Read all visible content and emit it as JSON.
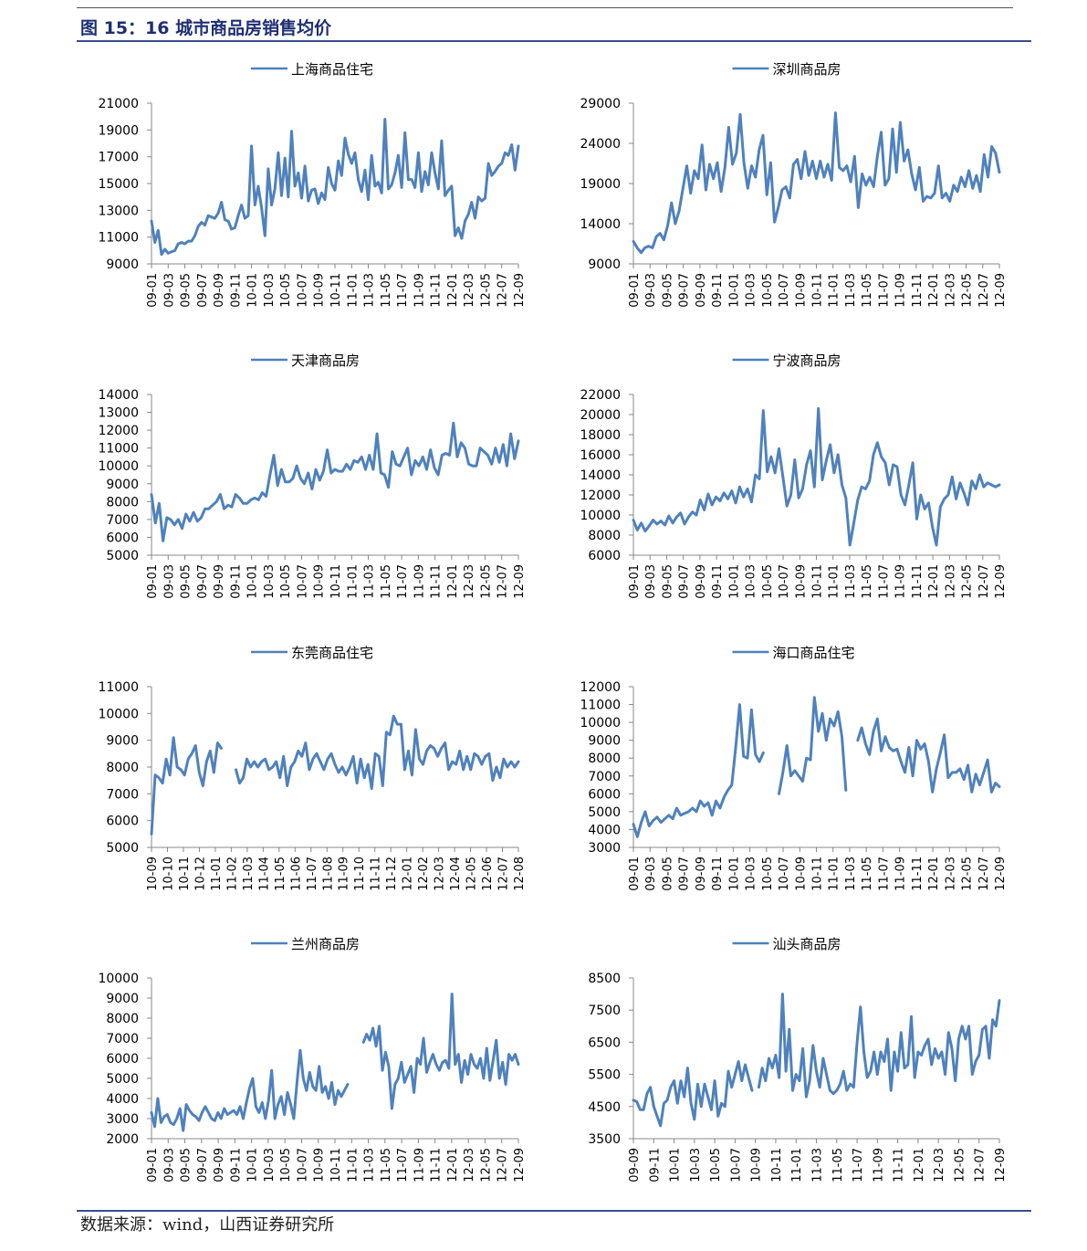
{
  "figure_title": "图 15：16 城市商品房销售均价",
  "source": "数据来源：wind，山西证券研究所",
  "colors": {
    "line": "#4f81bd",
    "title": "#1f2f73",
    "rule": "#3c4d8e"
  },
  "chart_data": [
    {
      "type": "line",
      "series_name": "上海商品住宅",
      "ylim": [
        9000,
        21000
      ],
      "yticks": [
        9000,
        11000,
        13000,
        15000,
        17000,
        19000,
        21000
      ],
      "xticks": [
        "09-01",
        "09-03",
        "09-05",
        "09-07",
        "09-09",
        "09-11",
        "10-01",
        "10-03",
        "10-05",
        "10-07",
        "10-09",
        "10-11",
        "11-01",
        "11-03",
        "11-05",
        "11-07",
        "11-09",
        "11-11",
        "12-01",
        "12-03",
        "12-05",
        "12-07",
        "12-09"
      ],
      "y": [
        12200,
        10600,
        11500,
        9700,
        10100,
        9800,
        9900,
        10000,
        10500,
        10600,
        10500,
        10700,
        10700,
        11100,
        11800,
        12100,
        11900,
        12600,
        12500,
        12400,
        12800,
        13600,
        12300,
        12200,
        11600,
        11700,
        12600,
        13400,
        12400,
        12600,
        17800,
        13400,
        14800,
        13200,
        11100,
        16100,
        13400,
        14600,
        17300,
        14100,
        16900,
        14000,
        18900,
        14800,
        15800,
        13900,
        16300,
        13700,
        14500,
        14600,
        13500,
        14300,
        13800,
        16200,
        15000,
        14500,
        16700,
        15600,
        18400,
        17200,
        16500,
        17300,
        15300,
        14400,
        16000,
        13800,
        17100,
        14800,
        15100,
        14300,
        19800,
        14600,
        14900,
        15800,
        17100,
        14700,
        18800,
        15300,
        15300,
        14700,
        17300,
        14400,
        15900,
        14900,
        17300,
        15800,
        14600,
        18200,
        14100,
        14500,
        14800,
        11100,
        11700,
        10900,
        12200,
        12700,
        13600,
        12400,
        14000,
        13700,
        13900,
        16500,
        15600,
        15900,
        16300,
        16500,
        17300,
        17100,
        17900,
        16000,
        17800
      ]
    },
    {
      "type": "line",
      "series_name": "深圳商品房",
      "ylim": [
        9000,
        29000
      ],
      "yticks": [
        9000,
        14000,
        19000,
        24000,
        29000
      ],
      "xticks": [
        "09-01",
        "09-03",
        "09-05",
        "09-07",
        "09-09",
        "09-11",
        "10-01",
        "10-03",
        "10-05",
        "10-07",
        "10-09",
        "10-11",
        "11-01",
        "11-03",
        "11-05",
        "11-07",
        "11-09",
        "11-11",
        "12-01",
        "12-03",
        "12-05",
        "12-07",
        "12-09"
      ],
      "y": [
        11800,
        11000,
        10400,
        11000,
        11200,
        11000,
        12400,
        12800,
        12000,
        13800,
        16600,
        14000,
        15600,
        18400,
        21200,
        17800,
        20600,
        19600,
        23800,
        18200,
        21400,
        19600,
        21600,
        18000,
        21000,
        26000,
        21400,
        22800,
        27600,
        21600,
        18400,
        21200,
        19800,
        23200,
        25000,
        17600,
        21600,
        14200,
        16000,
        18200,
        18600,
        17200,
        21400,
        22000,
        19600,
        23000,
        20000,
        21800,
        19600,
        21800,
        19800,
        21400,
        19400,
        27800,
        21000,
        20600,
        21200,
        19200,
        22400,
        16000,
        20200,
        18800,
        19800,
        18600,
        22400,
        25400,
        18800,
        19600,
        25800,
        20400,
        26600,
        21800,
        23200,
        20200,
        18200,
        21000,
        16800,
        17400,
        17200,
        17800,
        21200,
        17200,
        17800,
        16800,
        18800,
        18000,
        19800,
        18600,
        20600,
        18400,
        20000,
        18000,
        22600,
        19800,
        23600,
        22800,
        20400
      ]
    },
    {
      "type": "line",
      "series_name": "天津商品房",
      "ylim": [
        5000,
        14000
      ],
      "yticks": [
        5000,
        6000,
        7000,
        8000,
        9000,
        10000,
        11000,
        12000,
        13000,
        14000
      ],
      "xticks": [
        "09-01",
        "09-03",
        "09-05",
        "09-07",
        "09-09",
        "09-11",
        "10-01",
        "10-03",
        "10-05",
        "10-07",
        "10-09",
        "10-11",
        "11-01",
        "11-03",
        "11-05",
        "11-07",
        "11-09",
        "11-11",
        "12-01",
        "12-03",
        "12-05",
        "12-07",
        "12-09"
      ],
      "y": [
        8400,
        6800,
        7900,
        5800,
        7100,
        7000,
        6700,
        7000,
        6500,
        7300,
        6900,
        7400,
        6900,
        7100,
        7600,
        7600,
        7800,
        8000,
        8400,
        7600,
        7800,
        7700,
        8400,
        8200,
        7900,
        7900,
        8100,
        8200,
        8100,
        8500,
        8300,
        9500,
        10600,
        8900,
        9800,
        9100,
        9100,
        9300,
        10000,
        9300,
        9000,
        9600,
        8700,
        9800,
        9200,
        9700,
        10900,
        9600,
        9800,
        9700,
        9700,
        10100,
        9800,
        10300,
        10200,
        10500,
        9800,
        10600,
        9800,
        11800,
        9600,
        9500,
        8800,
        10800,
        10100,
        10000,
        10500,
        11000,
        9500,
        10300,
        10000,
        10500,
        9800,
        10900,
        9900,
        9500,
        10600,
        10700,
        10600,
        12400,
        10500,
        11300,
        11000,
        10100,
        10000,
        10000,
        11000,
        10800,
        10600,
        10100,
        11000,
        10200,
        11200,
        10000,
        11800,
        10400,
        11400
      ]
    },
    {
      "type": "line",
      "series_name": "宁波商品房",
      "ylim": [
        6000,
        22000
      ],
      "yticks": [
        6000,
        8000,
        10000,
        12000,
        14000,
        16000,
        18000,
        20000,
        22000
      ],
      "xticks": [
        "09-01",
        "09-03",
        "09-05",
        "09-07",
        "09-09",
        "09-11",
        "10-01",
        "10-03",
        "10-05",
        "10-07",
        "10-09",
        "10-11",
        "11-01",
        "11-03",
        "11-05",
        "11-07",
        "11-09",
        "11-11",
        "12-01",
        "12-03",
        "12-05",
        "12-07",
        "12-09"
      ],
      "y": [
        9500,
        8500,
        9200,
        8400,
        8900,
        9500,
        9100,
        9400,
        9000,
        9900,
        9200,
        9800,
        10200,
        9100,
        9800,
        10300,
        10000,
        11500,
        10500,
        12100,
        11000,
        11800,
        11400,
        12200,
        11600,
        12400,
        11200,
        12800,
        11800,
        12600,
        11300,
        14000,
        13600,
        20400,
        14300,
        15800,
        14200,
        16600,
        13800,
        10900,
        12000,
        15500,
        11700,
        12600,
        15000,
        16400,
        12800,
        20600,
        13500,
        15400,
        17000,
        14200,
        16000,
        13000,
        11700,
        7000,
        9200,
        11500,
        12800,
        12600,
        13400,
        16000,
        17200,
        15800,
        15200,
        13000,
        15000,
        14800,
        12000,
        11000,
        13000,
        15200,
        9600,
        12000,
        10600,
        11200,
        8800,
        7000,
        10800,
        11600,
        12000,
        13800,
        11600,
        13200,
        12200,
        11000,
        13400,
        12600,
        14000,
        12800,
        13200,
        13000,
        12800,
        13000
      ]
    },
    {
      "type": "line",
      "series_name": "东莞商品住宅",
      "ylim": [
        5000,
        11000
      ],
      "yticks": [
        5000,
        6000,
        7000,
        8000,
        9000,
        10000,
        11000
      ],
      "xticks": [
        "10-09",
        "10-10",
        "10-11",
        "10-12",
        "11-01",
        "11-02",
        "11-03",
        "11-04",
        "11-05",
        "11-06",
        "11-07",
        "11-08",
        "11-09",
        "11-10",
        "11-11",
        "11-12",
        "12-01",
        "12-02",
        "12-03",
        "12-04",
        "12-05",
        "12-06",
        "12-07",
        "12-08"
      ],
      "segments": [
        {
          "start": 0,
          "y": [
            5500,
            7700,
            7600,
            7400,
            8300,
            7700,
            9100,
            8000,
            7900,
            7700,
            8300,
            8500,
            8800,
            7800,
            7300,
            8200,
            8600,
            7800,
            8900,
            8700
          ]
        },
        {
          "start": 23,
          "y": [
            7900,
            7400,
            7600,
            8300,
            8000,
            8200,
            8000,
            8200,
            8300,
            7900,
            8000,
            8200,
            7600,
            8400,
            7300,
            8000,
            8200,
            8600,
            8400,
            8900,
            7900,
            8300,
            8500,
            8200,
            7900,
            8300,
            8500,
            8100,
            7800,
            8000,
            7700,
            8000,
            8400,
            7400,
            8300,
            7600,
            8100,
            7200,
            8500,
            8400,
            7300,
            9300,
            9200,
            9900,
            9600,
            9600,
            7900,
            8600,
            7700,
            9400,
            8300,
            8100,
            8600,
            8800,
            8700,
            8400,
            8700,
            8900,
            7900,
            8200,
            8100,
            8600,
            7900,
            8400,
            7900,
            8500,
            8400,
            8100,
            8400,
            8500,
            7500,
            8000,
            7600,
            8300,
            8000,
            8200,
            8000,
            8200
          ]
        }
      ]
    },
    {
      "type": "line",
      "series_name": "海口商品住宅",
      "ylim": [
        3000,
        12000
      ],
      "yticks": [
        3000,
        4000,
        5000,
        6000,
        7000,
        8000,
        9000,
        10000,
        11000,
        12000
      ],
      "xticks": [
        "09-01",
        "09-03",
        "09-05",
        "09-07",
        "09-09",
        "09-11",
        "10-01",
        "10-03",
        "10-05",
        "10-07",
        "10-09",
        "10-11",
        "11-01",
        "11-03",
        "11-05",
        "11-07",
        "11-09",
        "11-11",
        "12-01",
        "12-03",
        "12-05",
        "12-07",
        "12-09"
      ],
      "segments": [
        {
          "start": 0,
          "y": [
            4300,
            3600,
            4400,
            5000,
            4200,
            4500,
            4700,
            4400,
            4600,
            4800,
            4600,
            5200,
            4800,
            4900,
            5000,
            5200,
            5000,
            5600,
            5300,
            5500,
            4800,
            5600,
            5200,
            5800,
            6200,
            6500,
            8600,
            11000,
            8100,
            8000,
            10700,
            8200,
            7800,
            8300
          ]
        },
        {
          "start": 37,
          "y": [
            6000,
            7200,
            8700,
            7000,
            7300,
            7000,
            6700,
            8000,
            7900,
            11400,
            9500,
            10500,
            9000,
            10200,
            9800,
            10600,
            9200,
            6200
          ]
        },
        {
          "start": 57,
          "y": [
            9000,
            9700,
            8800,
            8200,
            9500,
            10200,
            8400,
            9200,
            8600,
            8400,
            8500,
            7800,
            7200,
            8600,
            7000,
            9000,
            8500,
            8800,
            7800,
            6100,
            7400,
            8300,
            9300,
            6900,
            7200,
            7200,
            7400,
            6800,
            7600,
            6100,
            7100,
            6500,
            7200,
            7900,
            6100,
            6600,
            6400
          ]
        }
      ]
    },
    {
      "type": "line",
      "series_name": "兰州商品房",
      "ylim": [
        2000,
        10000
      ],
      "yticks": [
        2000,
        3000,
        4000,
        5000,
        6000,
        7000,
        8000,
        9000,
        10000
      ],
      "xticks": [
        "09-01",
        "09-03",
        "09-05",
        "09-07",
        "09-09",
        "09-11",
        "10-01",
        "10-03",
        "10-05",
        "10-07",
        "10-09",
        "10-11",
        "11-01",
        "11-03",
        "11-05",
        "11-07",
        "11-09",
        "11-11",
        "12-01",
        "12-03",
        "12-05",
        "12-07",
        "12-09"
      ],
      "segments": [
        {
          "start": 0,
          "y": [
            3300,
            2600,
            4000,
            2800,
            3100,
            3200,
            2800,
            2700,
            3000,
            3500,
            2400,
            3700,
            3400,
            3200,
            3100,
            2900,
            3300,
            3600,
            3300,
            3000,
            2900,
            3300,
            3000,
            3500,
            3200,
            3300,
            3400,
            3200,
            3600,
            3000,
            3800,
            4500,
            5000,
            3600,
            3300,
            3800,
            3000,
            3900,
            5400,
            3000,
            3700,
            4100,
            3200,
            4300,
            3700,
            3000,
            4800,
            6400,
            5000,
            4400,
            5300,
            4600,
            4400,
            5600,
            4300,
            4600,
            4000,
            4800,
            3700,
            4400,
            4100,
            4400,
            4700
          ]
        },
        {
          "start": 67,
          "y": [
            6800,
            7200,
            6900,
            7500,
            6600,
            7600,
            5400,
            6300,
            5600,
            3500,
            4700,
            5000,
            5800,
            4800,
            5200,
            5600,
            4300,
            6000,
            5700,
            7000,
            5300,
            5800,
            6200,
            5700,
            5400,
            5800,
            5900,
            5500,
            9200,
            5700,
            6200,
            4800,
            5900,
            5200,
            6200,
            5700,
            5500,
            6000,
            5000,
            6500,
            4900,
            5900,
            6900,
            5000,
            5800,
            4700,
            6200,
            5900,
            6200,
            5700
          ]
        }
      ]
    },
    {
      "type": "line",
      "series_name": "汕头商品房",
      "ylim": [
        3500,
        8500
      ],
      "yticks": [
        3500,
        4500,
        5500,
        6500,
        7500,
        8500
      ],
      "xticks": [
        "09-09",
        "09-11",
        "10-01",
        "10-03",
        "10-05",
        "10-07",
        "10-09",
        "10-11",
        "11-01",
        "11-03",
        "11-05",
        "11-07",
        "11-09",
        "11-11",
        "12-01",
        "12-03",
        "12-05",
        "12-07",
        "12-09"
      ],
      "segments": [
        {
          "start": 0,
          "y": [
            4700,
            4650,
            4400,
            4400,
            4900,
            5100,
            4500,
            4200,
            3900,
            4600,
            4700,
            5100,
            5300,
            4600,
            5300,
            4800,
            5700,
            4600,
            4100,
            5200,
            4500,
            5200,
            4800,
            4400,
            5300,
            4200,
            4600,
            4500,
            5600,
            5100,
            5500,
            5900,
            5300,
            5800,
            5400,
            5000
          ]
        },
        {
          "start": 37,
          "y": [
            5100,
            5700,
            5300,
            6000,
            5700,
            6100,
            5400,
            8000,
            5600,
            6900,
            5000,
            5500,
            5300,
            6300,
            4800,
            5300,
            6400,
            5600,
            5100,
            6000,
            5500,
            5000,
            4900,
            5000,
            5200,
            5600,
            5000,
            5200,
            5100,
            6500,
            7600,
            6200,
            5400,
            5600,
            6200,
            5500,
            6200,
            5900,
            6600,
            5000,
            6200,
            5600,
            6800,
            5700,
            5800,
            7300,
            5400,
            6200,
            6100,
            6400,
            6600,
            5800,
            6300,
            6000,
            6200,
            5500,
            6800,
            6300,
            5300,
            6600,
            7000,
            6600,
            7000,
            5500,
            5900,
            6100,
            6900,
            7000,
            6000,
            7200,
            7000,
            7800
          ]
        }
      ]
    }
  ]
}
